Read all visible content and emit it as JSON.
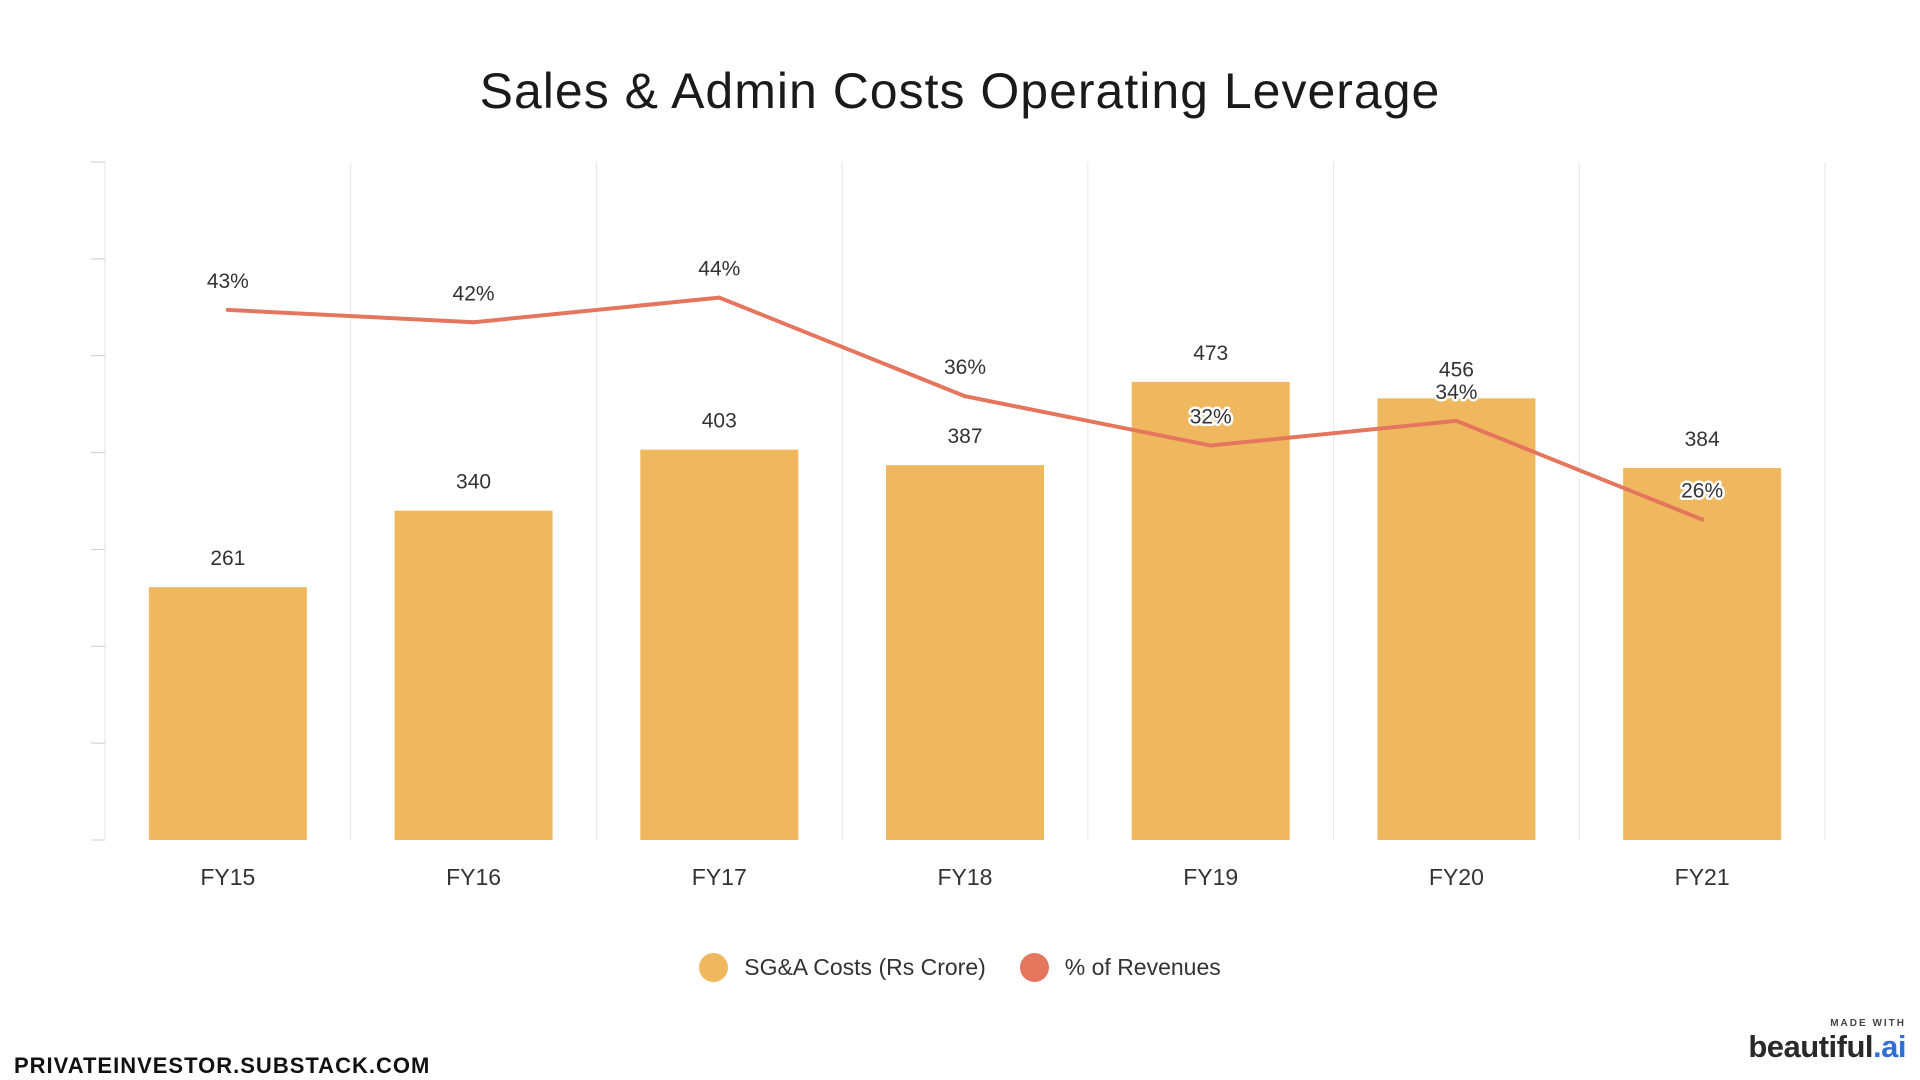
{
  "chart_data": {
    "type": "bar",
    "title": "Sales & Admin Costs Operating Leverage",
    "categories": [
      "FY15",
      "FY16",
      "FY17",
      "FY18",
      "FY19",
      "FY20",
      "FY21"
    ],
    "series": [
      {
        "name": "SG&A Costs (Rs Crore)",
        "type": "bar",
        "values": [
          261,
          340,
          403,
          387,
          473,
          456,
          384
        ],
        "labels": [
          "261",
          "340",
          "403",
          "387",
          "473",
          "456",
          "384"
        ],
        "color": "#F0B85E"
      },
      {
        "name": "% of Revenues",
        "type": "line",
        "values": [
          43,
          42,
          44,
          36,
          32,
          34,
          26
        ],
        "labels": [
          "43%",
          "42%",
          "44%",
          "36%",
          "32%",
          "34%",
          "26%"
        ],
        "color": "#E5765E"
      }
    ],
    "bar_axis_range": [
      0,
      700
    ],
    "line_axis_range": [
      0,
      55
    ],
    "axis_labels_shown": false,
    "grid": "vertical",
    "legend": "bottom-center"
  },
  "footer": {
    "source": "PRIVATEINVESTOR.SUBSTACK.COM",
    "brand_caption": "MADE WITH",
    "brand_name": "beautiful",
    "brand_tld": ".ai"
  },
  "colors": {
    "grid": "#e6e6e6",
    "axis_tick": "#cccccc"
  }
}
